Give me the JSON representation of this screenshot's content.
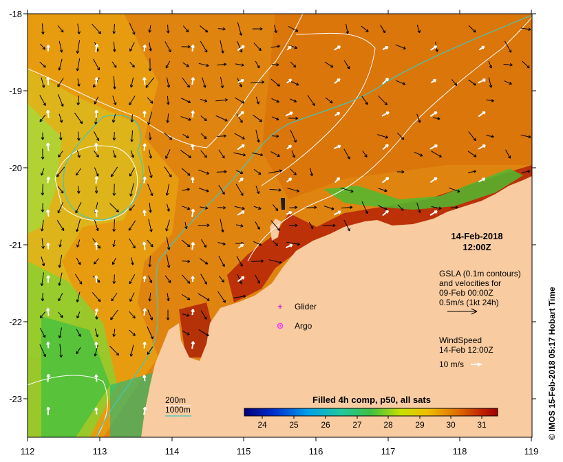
{
  "map": {
    "x_ticks": [
      "112",
      "113",
      "114",
      "115",
      "116",
      "117",
      "118",
      "119"
    ],
    "y_ticks": [
      "-18",
      "-19",
      "-20",
      "-21",
      "-22",
      "-23"
    ],
    "date_line1": "14-Feb-2018",
    "date_line2": "12:00Z",
    "gsla_lines": [
      "GSLA (0.1m contours)",
      "and velocities for",
      "09-Feb 00:00Z",
      "0.5m/s (1kt 24h)"
    ],
    "wind_lines": [
      "WindSpeed",
      "14-Feb 12:00Z"
    ],
    "wind_scale_label": "10 m/s",
    "legend_glider": "Glider",
    "legend_argo": "Argo",
    "contour_200": "200m",
    "contour_1000": "1000m",
    "colorbar_title": "Filled 4h comp, p50, all sats",
    "colorbar_ticks": [
      "24",
      "25",
      "26",
      "27",
      "28",
      "29",
      "30",
      "31"
    ],
    "credit": "© IMOS 15-Feb-2018 05:17 Hobart Time",
    "colors": {
      "land": "#f8cba0",
      "contour_200": "#ffffff",
      "contour_1000": "#3fc8c0",
      "glider": "#cc33cc",
      "argo": "#ff33ff"
    }
  }
}
